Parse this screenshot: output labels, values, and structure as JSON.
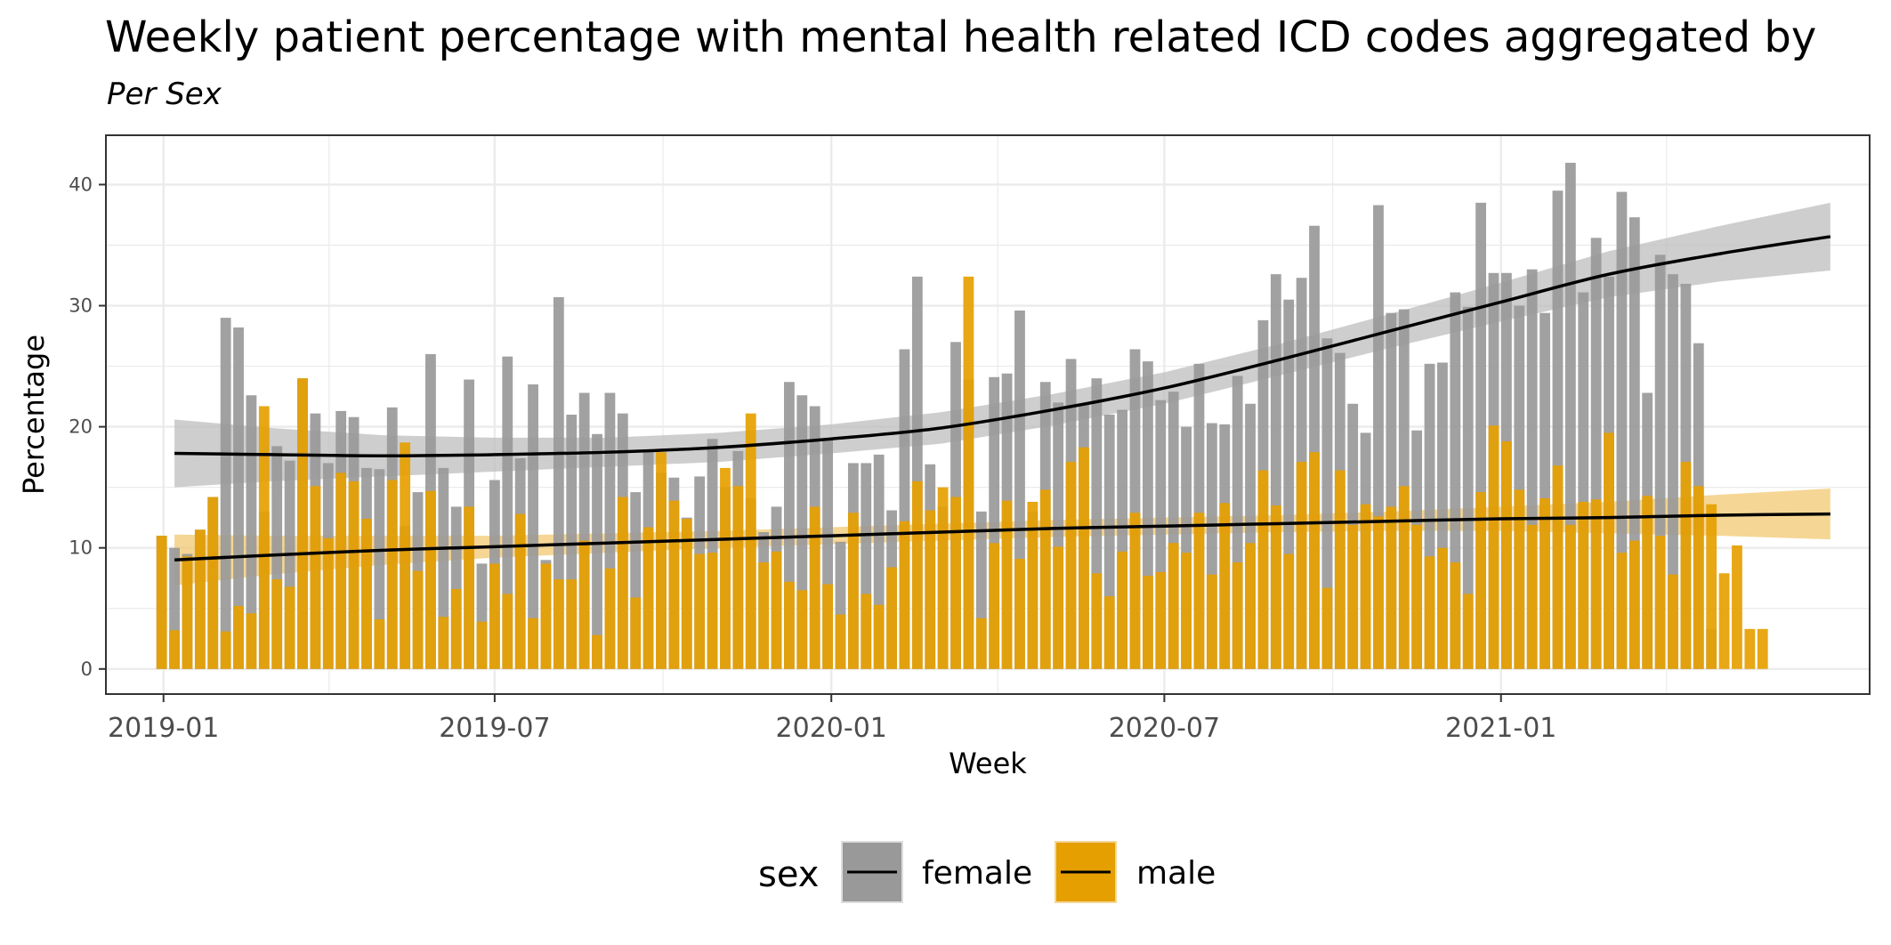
{
  "chart_data": {
    "type": "bar",
    "title": "Weekly patient percentage with mental health related ICD codes aggregated by",
    "subtitle": "Per Sex",
    "xlabel": "Week",
    "ylabel": "Percentage",
    "x_ticks": [
      "2019-01",
      "2019-07",
      "2020-01",
      "2020-07",
      "2021-01"
    ],
    "y_ticks": [
      "0",
      "10",
      "20",
      "30",
      "40"
    ],
    "x_range": [
      "2018-12-01",
      "2021-07-21"
    ],
    "ylim": [
      -2,
      44
    ],
    "bars_overlaid": true,
    "grid": true,
    "legend_position": "bottom",
    "legend": {
      "title": "sex",
      "entries": [
        {
          "label": "female",
          "color": "#999999"
        },
        {
          "label": "male",
          "color": "#E69F00"
        }
      ]
    },
    "weeks": [
      "2018-12-31",
      "2019-01-07",
      "2019-01-14",
      "2019-01-21",
      "2019-01-28",
      "2019-02-04",
      "2019-02-11",
      "2019-02-18",
      "2019-02-25",
      "2019-03-04",
      "2019-03-11",
      "2019-03-18",
      "2019-03-25",
      "2019-04-01",
      "2019-04-08",
      "2019-04-15",
      "2019-04-22",
      "2019-04-29",
      "2019-05-06",
      "2019-05-13",
      "2019-05-20",
      "2019-05-27",
      "2019-06-03",
      "2019-06-10",
      "2019-06-17",
      "2019-06-24",
      "2019-07-01",
      "2019-07-08",
      "2019-07-15",
      "2019-07-22",
      "2019-07-29",
      "2019-08-05",
      "2019-08-12",
      "2019-08-19",
      "2019-08-26",
      "2019-09-02",
      "2019-09-09",
      "2019-09-16",
      "2019-09-23",
      "2019-09-30",
      "2019-10-07",
      "2019-10-14",
      "2019-10-21",
      "2019-10-28",
      "2019-11-04",
      "2019-11-11",
      "2019-11-18",
      "2019-11-25",
      "2019-12-02",
      "2019-12-09",
      "2019-12-16",
      "2019-12-23",
      "2019-12-30",
      "2020-01-06",
      "2020-01-13",
      "2020-01-20",
      "2020-01-27",
      "2020-02-03",
      "2020-02-10",
      "2020-02-17",
      "2020-02-24",
      "2020-03-02",
      "2020-03-09",
      "2020-03-16",
      "2020-03-23",
      "2020-03-30",
      "2020-04-06",
      "2020-04-13",
      "2020-04-20",
      "2020-04-27",
      "2020-05-04",
      "2020-05-11",
      "2020-05-18",
      "2020-05-25",
      "2020-06-01",
      "2020-06-08",
      "2020-06-15",
      "2020-06-22",
      "2020-06-29",
      "2020-07-06",
      "2020-07-13",
      "2020-07-20",
      "2020-07-27",
      "2020-08-03",
      "2020-08-10",
      "2020-08-17",
      "2020-08-24",
      "2020-08-31",
      "2020-09-07",
      "2020-09-14",
      "2020-09-21",
      "2020-09-28",
      "2020-10-05",
      "2020-10-12",
      "2020-10-19",
      "2020-10-26",
      "2020-11-02",
      "2020-11-09",
      "2020-11-16",
      "2020-11-23",
      "2020-11-30",
      "2020-12-07",
      "2020-12-14",
      "2020-12-21",
      "2020-12-28",
      "2021-01-04",
      "2021-01-11",
      "2021-01-18",
      "2021-01-25",
      "2021-02-01",
      "2021-02-08",
      "2021-02-15",
      "2021-02-22",
      "2021-03-01",
      "2021-03-08",
      "2021-03-15",
      "2021-03-22",
      "2021-03-29",
      "2021-04-05",
      "2021-04-12",
      "2021-04-19",
      "2021-04-26",
      "2021-05-03",
      "2021-05-10",
      "2021-05-17",
      "2021-05-24",
      "2021-05-31",
      "2021-06-07",
      "2021-06-14",
      "2021-06-21",
      "2021-06-28",
      "2021-07-05"
    ],
    "series": [
      {
        "name": "female",
        "color": "#999999",
        "values": [
          11.0,
          10.0,
          9.5,
          11.5,
          14.2,
          29.0,
          28.2,
          22.6,
          13.0,
          18.4,
          17.2,
          24.0,
          21.1,
          17.0,
          21.3,
          20.8,
          16.6,
          16.5,
          21.6,
          11.8,
          14.6,
          26.0,
          16.6,
          13.4,
          23.9,
          8.7,
          15.6,
          25.8,
          17.4,
          23.5,
          9.0,
          30.7,
          21.0,
          22.8,
          19.4,
          22.8,
          21.1,
          14.6,
          18.0,
          16.2,
          15.8,
          12.5,
          15.9,
          19.0,
          15.0,
          18.0,
          14.1,
          11.3,
          13.4,
          23.7,
          22.6,
          21.7,
          19.0,
          10.5,
          17.0,
          17.0,
          17.7,
          13.1,
          26.4,
          32.4,
          16.9,
          13.4,
          27.0,
          23.9,
          13.0,
          24.1,
          24.4,
          29.6,
          13.0,
          23.7,
          22.0,
          25.6,
          21.9,
          24.0,
          21.0,
          21.4,
          26.4,
          25.4,
          22.2,
          22.9,
          20.0,
          25.2,
          20.3,
          20.2,
          24.2,
          21.9,
          28.8,
          32.6,
          30.5,
          32.3,
          36.6,
          27.3,
          26.1,
          21.9,
          19.5,
          38.3,
          29.4,
          29.7,
          19.7,
          25.2,
          25.3,
          31.1,
          29.9,
          38.5,
          32.7,
          32.7,
          30.0,
          33.0,
          29.4,
          39.5,
          41.8,
          31.1,
          35.6,
          32.4,
          39.4,
          37.3,
          22.8,
          34.2,
          32.6,
          31.8,
          26.9,
          3.3
        ]
      },
      {
        "name": "male",
        "color": "#E69F00",
        "values": [
          11.0,
          3.2,
          9.3,
          11.5,
          14.2,
          3.1,
          5.2,
          4.6,
          21.7,
          7.4,
          6.8,
          24.0,
          15.1,
          10.8,
          16.2,
          15.5,
          12.4,
          4.1,
          15.6,
          18.7,
          8.1,
          14.7,
          4.3,
          6.6,
          13.4,
          3.9,
          8.7,
          6.2,
          12.8,
          4.2,
          8.7,
          7.4,
          7.4,
          10.6,
          2.8,
          8.3,
          14.2,
          5.9,
          11.7,
          17.9,
          13.9,
          12.4,
          9.5,
          9.6,
          16.6,
          15.1,
          21.1,
          8.8,
          9.7,
          7.2,
          6.5,
          13.4,
          7.0,
          4.5,
          12.9,
          6.2,
          5.3,
          8.4,
          12.2,
          15.5,
          13.1,
          15.0,
          14.2,
          32.4,
          4.2,
          10.4,
          13.9,
          9.1,
          13.8,
          14.8,
          10.1,
          17.1,
          18.3,
          7.9,
          6.0,
          9.7,
          12.9,
          7.7,
          8.0,
          10.4,
          9.6,
          12.9,
          7.8,
          13.7,
          8.8,
          10.4,
          16.4,
          13.5,
          9.5,
          17.1,
          17.9,
          6.7,
          16.4,
          11.9,
          13.6,
          12.6,
          13.4,
          15.1,
          11.9,
          9.3,
          10.0,
          8.8,
          6.2,
          14.6,
          20.1,
          18.8,
          14.8,
          11.9,
          14.1,
          16.8,
          11.9,
          13.8,
          14.0,
          19.5,
          9.6,
          10.6,
          14.3,
          11.0,
          7.8,
          17.1,
          15.1,
          13.6,
          7.9,
          10.2,
          3.3,
          3.3
        ]
      }
    ],
    "trend_lines": [
      {
        "name": "female",
        "x": [
          "2019-01-07",
          "2019-03-01",
          "2019-05-01",
          "2019-07-01",
          "2019-09-01",
          "2019-11-01",
          "2020-01-01",
          "2020-03-01",
          "2020-05-01",
          "2020-07-01",
          "2020-09-01",
          "2020-11-01",
          "2021-01-01",
          "2021-03-01",
          "2021-05-01",
          "2021-06-30"
        ],
        "y": [
          17.8,
          17.7,
          17.6,
          17.7,
          17.9,
          18.3,
          19.0,
          19.9,
          21.4,
          23.2,
          25.5,
          27.9,
          30.3,
          32.6,
          34.3,
          35.7
        ],
        "ci_half_width": [
          2.8,
          2.2,
          1.7,
          1.4,
          1.2,
          1.2,
          1.2,
          1.3,
          1.3,
          1.3,
          1.3,
          1.4,
          1.6,
          1.9,
          2.3,
          2.8
        ]
      },
      {
        "name": "male",
        "x": [
          "2019-01-07",
          "2019-03-01",
          "2019-05-01",
          "2019-07-01",
          "2019-09-01",
          "2019-11-01",
          "2020-01-01",
          "2020-03-01",
          "2020-05-01",
          "2020-07-01",
          "2020-09-01",
          "2020-11-01",
          "2021-01-01",
          "2021-03-01",
          "2021-05-01",
          "2021-06-30"
        ],
        "y": [
          9.0,
          9.4,
          9.8,
          10.1,
          10.4,
          10.7,
          11.0,
          11.3,
          11.6,
          11.8,
          12.0,
          12.2,
          12.4,
          12.5,
          12.7,
          12.8
        ],
        "ci_half_width": [
          2.1,
          1.6,
          1.2,
          0.9,
          0.8,
          0.7,
          0.7,
          0.7,
          0.7,
          0.7,
          0.7,
          0.8,
          1.0,
          1.3,
          1.7,
          2.1
        ]
      }
    ],
    "colors": {
      "female_bar": "#999999",
      "male_bar": "#E69F00",
      "female_ribbon": "#bdbdbd",
      "male_ribbon": "#f2c870",
      "trend_line": "#000000",
      "grid": "#ebebeb",
      "panel_border": "#333333"
    }
  }
}
